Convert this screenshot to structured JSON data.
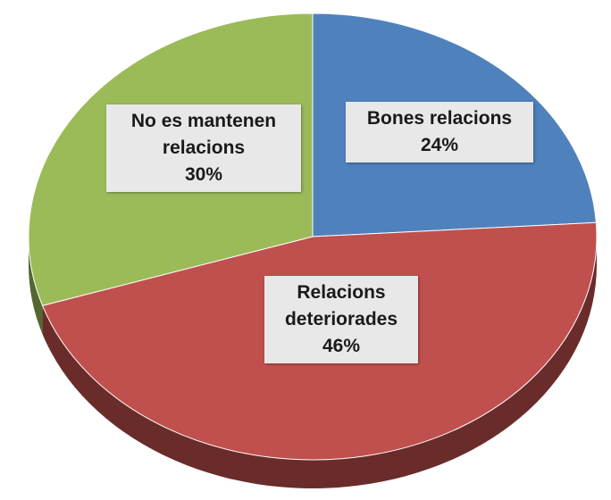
{
  "chart_data": {
    "type": "pie",
    "categories": [
      "Bones relacions",
      "Relacions deteriorades",
      "No es mantenen relacions"
    ],
    "values": [
      24,
      46,
      30
    ],
    "value_labels": [
      "24%",
      "46%",
      "30%"
    ],
    "colors": [
      "#4f81bd",
      "#c0504d",
      "#9bbb59"
    ]
  }
}
